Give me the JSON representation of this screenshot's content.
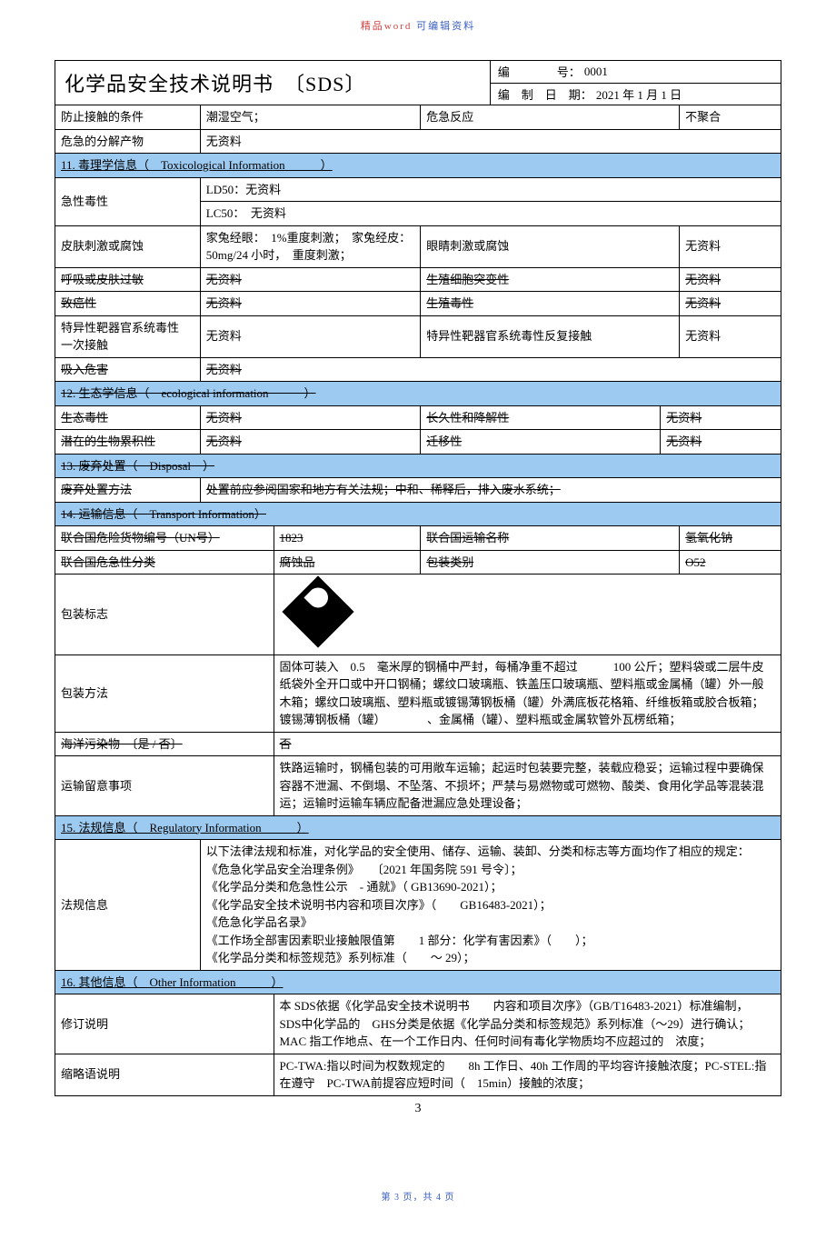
{
  "top_header": {
    "left": "精品word",
    "right": "可编辑资料"
  },
  "header": {
    "title": "化学品安全技术说明书　〔SDS〕",
    "no_label": "编　　　　号：",
    "no_value": "0001",
    "date_label": "编　制　日　期：",
    "date_value": "2021 年 1 月 1 日"
  },
  "rows_top": [
    [
      "防止接触的条件",
      "潮湿空气；",
      "危急反应",
      "不聚合"
    ],
    [
      "危急的分解产物",
      "无资料",
      "",
      ""
    ]
  ],
  "s11": {
    "title": "11. 毒理学信息（　Toxicological Information　　　）",
    "acute_label": "急性毒性",
    "ld50": "LD50：无资料",
    "lc50": "LC50：　无资料",
    "rows": [
      [
        "皮肤刺激或腐蚀",
        "家兔经眼：　1%重度刺激；　家兔经皮：　50mg/24 小时，　重度刺激；",
        "眼睛刺激或腐蚀",
        "无资料"
      ],
      [
        "呼吸或皮肤过敏",
        "无资料",
        "生殖细胞突变性",
        "无资料"
      ],
      [
        "致癌性",
        "无资料",
        "生殖毒性",
        "无资料"
      ],
      [
        "特异性靶器官系统毒性　一次接触",
        "无资料",
        "特异性靶器官系统毒性反复接触",
        "无资料"
      ],
      [
        "吸入危害",
        "无资料",
        "",
        ""
      ]
    ]
  },
  "s12": {
    "title": "12. 生态学信息（　ecological information　　　）",
    "rows": [
      [
        "生态毒性",
        "无资料",
        "长久性和降解性",
        "无资料"
      ],
      [
        "潜在的生物累积性",
        "无资料",
        "迁移性",
        "无资料"
      ]
    ]
  },
  "s13": {
    "title": "13. 废弃处置（　Disposal　）",
    "label": "废弃处置方法",
    "value": "处置前应参阅国家和地方有关法规；中和、稀释后，排入废水系统；"
  },
  "s14": {
    "title": "14. 运输信息（　Transport Information）",
    "un_label": "联合国危险货物编号（UN号）",
    "un_value": "1823",
    "shipname_label": "联合国运输名称",
    "shipname_value": "氢氧化钠",
    "class_label": "联合国危急性分类",
    "class_value": "腐蚀品",
    "pkgcat_label": "包装类别",
    "pkgcat_value": "O52",
    "pkgmark_label": "包装标志",
    "pkgmethod_label": "包装方法",
    "pkgmethod_value": "固体可装入　0.5　毫米厚的钢桶中严封，每桶净重不超过　　　100 公斤；塑料袋或二层牛皮纸袋外全开口或中开口钢桶；螺纹口玻璃瓶、铁盖压口玻璃瓶、塑料瓶或金属桶（罐）外一般木箱；螺纹口玻璃瓶、塑料瓶或镀锡薄钢板桶（罐）外满底板花格箱、纤维板箱或胶合板箱；镀锡薄钢板桶（罐）　　　　、金属桶（罐）、塑料瓶或金属软管外瓦楞纸箱；",
    "marine_label": "海洋污染物　〔是 / 否〕",
    "marine_value": "否",
    "transport_label": "运输留意事项",
    "transport_value": "铁路运输时，钢桶包装的可用敞车运输；起运时包装要完整，装载应稳妥；运输过程中要确保容器不泄漏、不倒塌、不坠落、不损坏；严禁与易燃物或可燃物、酸类、食用化学品等混装混运；运输时运输车辆应配备泄漏应急处理设备；"
  },
  "s15": {
    "title": "15. 法规信息（　Regulatory Information　　　）",
    "label": "法规信息",
    "value": "以下法律法规和标准，对化学品的安全使用、储存、运输、装卸、分类和标志等方面均作了相应的规定：\n《危急化学品安全治理条例》　　〔2021 年国务院 591 号令〕；\n《化学品分类和危急性公示　- 通就》（ GB13690-2021）；\n《化学品安全技术说明书内容和项目次序》（　　GB16483-2021）；\n《危急化学品名录》\n《工作场全部害因素职业接触限值第　　1 部分：化学有害因素》（　　）；\n《化学品分类和标签规范》系列标准（　　～ 29）；"
  },
  "s16": {
    "title": "16. 其他信息（　Other Information　　　）",
    "rev_label": "修订说明",
    "rev_value": "本 SDS依据《化学品安全技术说明书　　内容和项目次序》（GB/T16483-2021）标准编制，　SDS中化学品的　GHS分类是依据《化学品分类和标签规范》系列标准（～29）进行确认；MAC 指工作地点、在一个工作日内、任何时间有毒化学物质均不应超过的　浓度；",
    "abbr_label": "缩略语说明",
    "abbr_value": "PC-TWA:指以时间为权数规定的　　8h 工作日、40h 工作周的平均容许接触浓度；PC-STEL:指在遵守　PC-TWA前提容应短时间（　15min）接触的浓度；"
  },
  "page_num": "3",
  "footer": "第 3 页，共 4 页"
}
